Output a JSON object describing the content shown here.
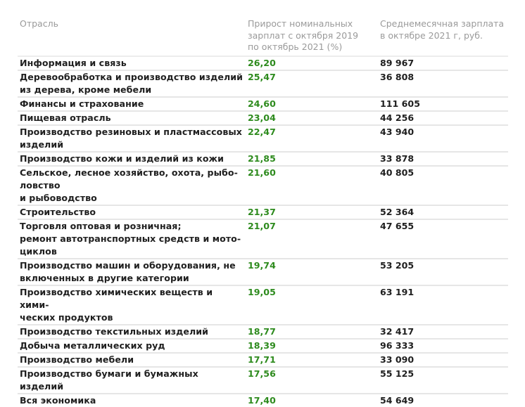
{
  "table": {
    "headers": {
      "industry": "Отрасль",
      "growth": "Прирост номинальных зарплат с октября 2019 по октябрь 2021 (%)",
      "growth_lines": [
        "Прирост номинальных",
        "зарплат с октября 2019",
        "по октябрь 2021 (%)"
      ],
      "salary": "Среднемесячная зарплата в октябре 2021 г, руб.",
      "salary_lines": [
        "Среднемесячная зарплата",
        "в октябре 2021 г, руб."
      ]
    },
    "rows": [
      {
        "industry_lines": [
          "Информация и связь"
        ],
        "growth": "26,20",
        "salary": "89 967"
      },
      {
        "industry_lines": [
          "Деревообработка и производство изделий",
          "из дерева, кроме мебели"
        ],
        "growth": "25,47",
        "salary": "36 808"
      },
      {
        "industry_lines": [
          "Финансы и страхование"
        ],
        "growth": "24,60",
        "salary": "111 605"
      },
      {
        "industry_lines": [
          "Пищевая отрасль"
        ],
        "growth": "23,04",
        "salary": "44 256"
      },
      {
        "industry_lines": [
          "Производство резиновых и пластмассовых",
          "изделий"
        ],
        "growth": "22,47",
        "salary": "43 940"
      },
      {
        "industry_lines": [
          "Производство кожи и изделий из кожи"
        ],
        "growth": "21,85",
        "salary": "33 878"
      },
      {
        "industry_lines": [
          "Сельское, лесное хозяйство, охота, рыбо-",
          "ловство",
          "и рыбоводство"
        ],
        "growth": "21,60",
        "salary": "40 805"
      },
      {
        "industry_lines": [
          "Строительство"
        ],
        "growth": "21,37",
        "salary": "52 364"
      },
      {
        "industry_lines": [
          "Торговля оптовая и розничная;",
          "ремонт автотранспортных средств и мото-",
          "циклов"
        ],
        "growth": "21,07",
        "salary": "47 655"
      },
      {
        "industry_lines": [
          "Производство машин и оборудования, не",
          "включенных в другие категории"
        ],
        "growth": "19,74",
        "salary": "53 205"
      },
      {
        "industry_lines": [
          "Производство химических веществ и хими-",
          "ческих продуктов"
        ],
        "growth": "19,05",
        "salary": "63 191"
      },
      {
        "industry_lines": [
          "Производство текстильных изделий"
        ],
        "growth": "18,77",
        "salary": "32 417"
      },
      {
        "industry_lines": [
          "Добыча металлических руд"
        ],
        "growth": "18,39",
        "salary": "96 333"
      },
      {
        "industry_lines": [
          "Производство мебели"
        ],
        "growth": "17,71",
        "salary": "33 090"
      },
      {
        "industry_lines": [
          "Производство бумаги и бумажных изделий"
        ],
        "growth": "17,56",
        "salary": "55 125"
      },
      {
        "industry_lines": [
          "Вся экономика"
        ],
        "growth": "17,40",
        "salary": "54 649"
      }
    ]
  },
  "colors": {
    "header_text": "#9a9a9a",
    "body_text": "#1f1f1f",
    "growth_green": "#2e8b1e",
    "divider": "#e6e6e6"
  }
}
